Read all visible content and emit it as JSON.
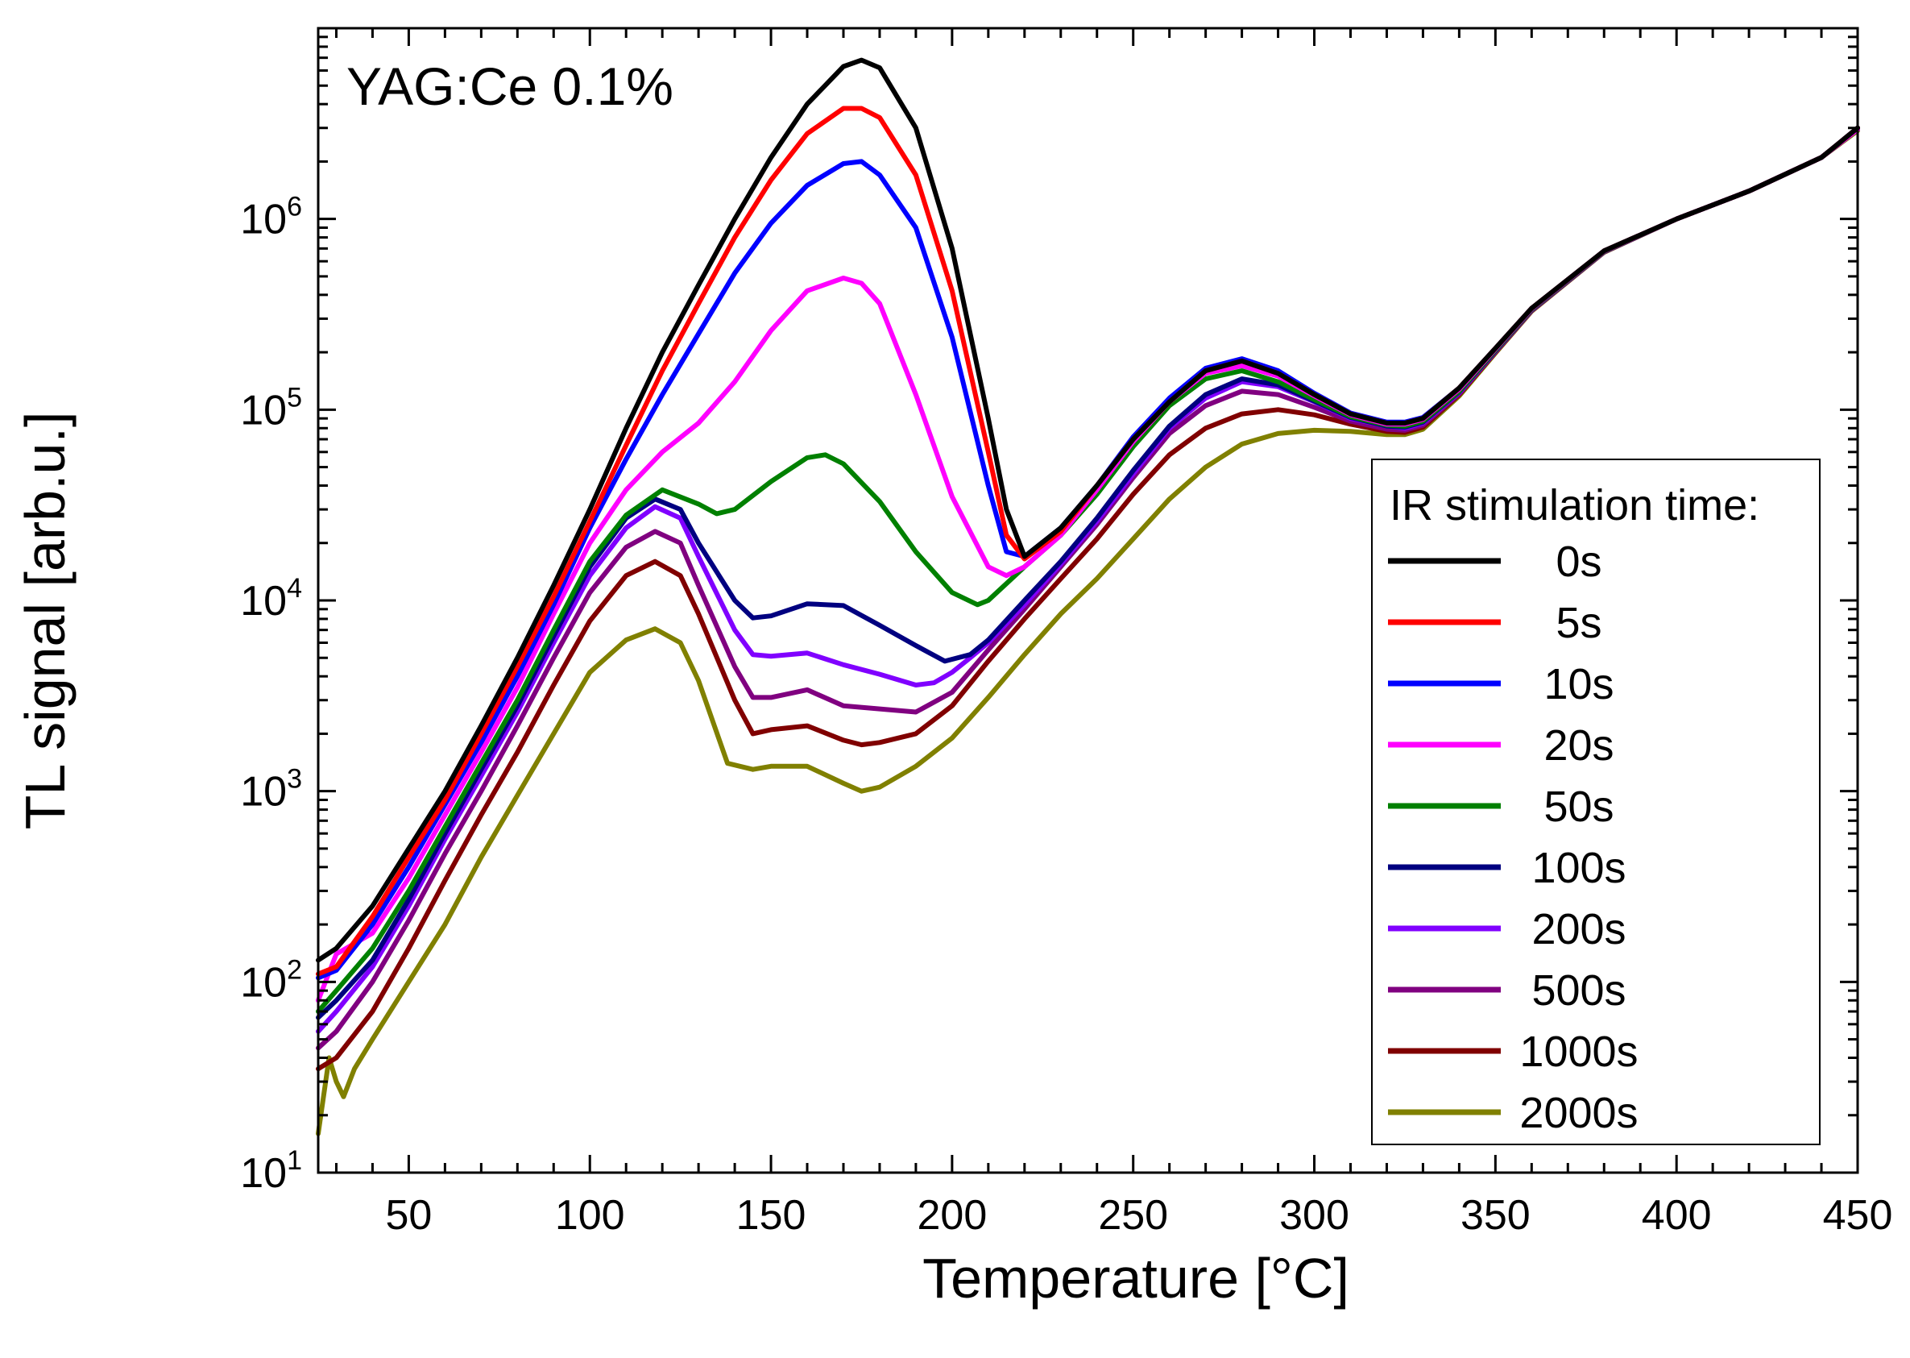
{
  "chart_data": {
    "type": "line",
    "annotation": "YAG:Ce 0.1%",
    "xlabel": "Temperature [°C]",
    "ylabel": "TL signal [arb.u.]",
    "xscale": "linear",
    "yscale": "log",
    "xlim": [
      25,
      450
    ],
    "ylim": [
      10,
      10000000
    ],
    "xticks": [
      50,
      100,
      150,
      200,
      250,
      300,
      350,
      400,
      450
    ],
    "yticks": [
      {
        "value": 10,
        "base": "10",
        "exp": "1"
      },
      {
        "value": 100,
        "base": "10",
        "exp": "2"
      },
      {
        "value": 1000,
        "base": "10",
        "exp": "3"
      },
      {
        "value": 10000,
        "base": "10",
        "exp": "4"
      },
      {
        "value": 100000,
        "base": "10",
        "exp": "5"
      },
      {
        "value": 1000000,
        "base": "10",
        "exp": "6"
      }
    ],
    "grid": false,
    "legend": {
      "title": "IR stimulation time:",
      "position": "right"
    },
    "series": [
      {
        "name": "0s",
        "color": "#000000",
        "x": [
          25,
          30,
          40,
          50,
          60,
          70,
          80,
          90,
          100,
          110,
          120,
          130,
          140,
          150,
          160,
          170,
          175,
          180,
          190,
          200,
          210,
          215,
          220,
          230,
          240,
          250,
          260,
          270,
          280,
          290,
          300,
          310,
          320,
          325,
          330,
          340,
          350,
          360,
          380,
          400,
          420,
          440,
          450
        ],
        "y": [
          130,
          150,
          250,
          500,
          1000,
          2200,
          5000,
          12000,
          30000,
          80000,
          200000,
          450000,
          1000000,
          2100000,
          4000000,
          6300000,
          6800000,
          6200000,
          3000000,
          700000,
          90000,
          30000,
          17000,
          24000,
          40000,
          70000,
          110000,
          160000,
          180000,
          155000,
          120000,
          95000,
          85000,
          85000,
          90000,
          130000,
          210000,
          340000,
          680000,
          1000000,
          1400000,
          2100000,
          3000000
        ]
      },
      {
        "name": "5s",
        "color": "#ff0000",
        "x": [
          25,
          30,
          40,
          50,
          60,
          70,
          80,
          90,
          100,
          110,
          120,
          130,
          140,
          150,
          160,
          170,
          175,
          180,
          190,
          200,
          210,
          215,
          220,
          230,
          240,
          250,
          260,
          270,
          280,
          290,
          300,
          310,
          320,
          325,
          330,
          340,
          350,
          360,
          380,
          400,
          420,
          440,
          450
        ],
        "y": [
          110,
          120,
          220,
          450,
          900,
          2000,
          4500,
          10500,
          26000,
          65000,
          160000,
          360000,
          800000,
          1600000,
          2800000,
          3800000,
          3800000,
          3400000,
          1700000,
          420000,
          60000,
          22000,
          16500,
          23000,
          40000,
          70000,
          110000,
          160000,
          180000,
          155000,
          120000,
          95000,
          85000,
          85000,
          90000,
          130000,
          210000,
          340000,
          680000,
          1000000,
          1400000,
          2100000,
          3000000
        ]
      },
      {
        "name": "10s",
        "color": "#0000ff",
        "x": [
          25,
          30,
          40,
          50,
          60,
          70,
          80,
          90,
          100,
          110,
          120,
          130,
          140,
          150,
          160,
          170,
          175,
          180,
          190,
          200,
          210,
          215,
          220,
          230,
          240,
          250,
          260,
          270,
          280,
          290,
          300,
          310,
          320,
          325,
          330,
          340,
          350,
          360,
          380,
          400,
          420,
          440,
          450
        ],
        "y": [
          105,
          115,
          200,
          400,
          850,
          1800,
          4000,
          9500,
          24000,
          55000,
          120000,
          250000,
          520000,
          950000,
          1500000,
          1950000,
          2000000,
          1700000,
          900000,
          240000,
          40000,
          18000,
          17000,
          24000,
          40000,
          72000,
          115000,
          165000,
          185000,
          160000,
          122000,
          96000,
          86000,
          86000,
          91000,
          130000,
          210000,
          340000,
          680000,
          1000000,
          1400000,
          2100000,
          3000000
        ]
      },
      {
        "name": "20s",
        "color": "#ff00ff",
        "x": [
          25,
          30,
          40,
          50,
          60,
          70,
          80,
          90,
          100,
          110,
          120,
          130,
          140,
          150,
          160,
          170,
          175,
          180,
          190,
          200,
          210,
          215,
          220,
          230,
          240,
          250,
          260,
          270,
          280,
          290,
          300,
          310,
          320,
          325,
          330,
          340,
          350,
          360,
          380,
          400,
          420,
          440,
          450
        ],
        "y": [
          80,
          140,
          180,
          350,
          750,
          1600,
          3500,
          8500,
          20000,
          38000,
          60000,
          85000,
          140000,
          260000,
          420000,
          490000,
          460000,
          360000,
          120000,
          35000,
          15000,
          13500,
          15000,
          22000,
          38000,
          68000,
          110000,
          155000,
          170000,
          150000,
          118000,
          94000,
          84000,
          84000,
          89000,
          128000,
          208000,
          338000,
          678000,
          1000000,
          1400000,
          2100000,
          2950000
        ]
      },
      {
        "name": "50s",
        "color": "#008000",
        "x": [
          25,
          30,
          40,
          50,
          60,
          70,
          80,
          90,
          100,
          110,
          120,
          130,
          135,
          140,
          150,
          160,
          165,
          170,
          180,
          190,
          200,
          207,
          210,
          220,
          230,
          240,
          250,
          260,
          270,
          280,
          290,
          300,
          310,
          320,
          325,
          330,
          340,
          350,
          360,
          380,
          400,
          420,
          440,
          450
        ],
        "y": [
          70,
          90,
          150,
          300,
          650,
          1400,
          3000,
          7000,
          16000,
          28000,
          38000,
          32000,
          28500,
          30000,
          42000,
          56000,
          58000,
          52000,
          33000,
          18000,
          11000,
          9500,
          10000,
          15000,
          22000,
          36000,
          64000,
          105000,
          145000,
          160000,
          140000,
          113000,
          92000,
          83000,
          82000,
          87000,
          125000,
          205000,
          335000,
          675000,
          1000000,
          1400000,
          2100000,
          2950000
        ]
      },
      {
        "name": "100s",
        "color": "#000080",
        "x": [
          25,
          30,
          40,
          50,
          60,
          70,
          80,
          90,
          100,
          110,
          118,
          125,
          130,
          140,
          145,
          150,
          160,
          170,
          180,
          190,
          198,
          205,
          210,
          220,
          230,
          240,
          250,
          260,
          270,
          280,
          290,
          300,
          310,
          320,
          325,
          330,
          340,
          350,
          360,
          380,
          400,
          420,
          440,
          450
        ],
        "y": [
          65,
          80,
          130,
          270,
          600,
          1300,
          2800,
          6500,
          15000,
          27000,
          34000,
          30000,
          20000,
          10000,
          8100,
          8300,
          9600,
          9400,
          7400,
          5800,
          4800,
          5200,
          6200,
          10000,
          16000,
          27000,
          48000,
          82000,
          120000,
          145000,
          135000,
          111000,
          91000,
          82000,
          81000,
          86000,
          124000,
          204000,
          334000,
          674000,
          1000000,
          1400000,
          2100000,
          2950000
        ]
      },
      {
        "name": "200s",
        "color": "#8000ff",
        "x": [
          25,
          30,
          40,
          50,
          60,
          70,
          80,
          90,
          100,
          110,
          118,
          125,
          130,
          140,
          145,
          150,
          160,
          170,
          180,
          190,
          195,
          200,
          205,
          210,
          220,
          230,
          240,
          250,
          260,
          270,
          280,
          290,
          300,
          310,
          320,
          325,
          330,
          340,
          350,
          360,
          380,
          400,
          420,
          440,
          450
        ],
        "y": [
          55,
          70,
          120,
          250,
          560,
          1200,
          2600,
          6000,
          13500,
          24000,
          31000,
          27000,
          17000,
          7000,
          5200,
          5100,
          5300,
          4600,
          4100,
          3600,
          3700,
          4200,
          5000,
          6000,
          9500,
          15500,
          26000,
          46000,
          80000,
          115000,
          140000,
          132000,
          110000,
          90000,
          82000,
          80000,
          85000,
          123000,
          203000,
          333000,
          673000,
          1000000,
          1400000,
          2100000,
          2950000
        ]
      },
      {
        "name": "500s",
        "color": "#800080",
        "x": [
          25,
          30,
          40,
          50,
          60,
          70,
          80,
          90,
          100,
          110,
          118,
          125,
          130,
          140,
          145,
          150,
          160,
          170,
          180,
          190,
          200,
          210,
          220,
          230,
          240,
          250,
          260,
          270,
          280,
          290,
          300,
          310,
          320,
          325,
          330,
          340,
          350,
          360,
          380,
          400,
          420,
          440,
          450
        ],
        "y": [
          45,
          55,
          100,
          210,
          470,
          1000,
          2200,
          5000,
          11000,
          19000,
          23000,
          20000,
          12000,
          4500,
          3100,
          3100,
          3400,
          2800,
          2700,
          2600,
          3300,
          5500,
          9000,
          15000,
          25000,
          44000,
          75000,
          105000,
          125000,
          120000,
          103000,
          87000,
          79000,
          78000,
          83000,
          121000,
          201000,
          331000,
          671000,
          1000000,
          1400000,
          2100000,
          2950000
        ]
      },
      {
        "name": "1000s",
        "color": "#800000",
        "x": [
          25,
          30,
          40,
          50,
          60,
          70,
          80,
          90,
          100,
          110,
          118,
          125,
          130,
          140,
          145,
          150,
          160,
          170,
          175,
          180,
          190,
          200,
          210,
          220,
          230,
          240,
          250,
          260,
          270,
          280,
          290,
          300,
          310,
          320,
          325,
          330,
          340,
          350,
          360,
          380,
          400,
          420,
          440,
          450
        ],
        "y": [
          35,
          40,
          70,
          150,
          340,
          750,
          1600,
          3600,
          7800,
          13500,
          16000,
          13500,
          8500,
          3000,
          2000,
          2100,
          2200,
          1850,
          1750,
          1800,
          2000,
          2800,
          4800,
          8000,
          13000,
          21000,
          36000,
          58000,
          80000,
          95000,
          100000,
          94000,
          84000,
          77000,
          76000,
          81000,
          120000,
          200000,
          330000,
          670000,
          1000000,
          1400000,
          2100000,
          2950000
        ]
      },
      {
        "name": "2000s",
        "color": "#808000",
        "x": [
          25,
          28,
          30,
          32,
          35,
          40,
          50,
          60,
          70,
          80,
          90,
          100,
          110,
          118,
          125,
          130,
          138,
          145,
          150,
          160,
          170,
          175,
          180,
          190,
          200,
          210,
          220,
          230,
          240,
          250,
          260,
          270,
          280,
          290,
          300,
          310,
          320,
          325,
          330,
          340,
          350,
          360,
          380,
          400,
          420,
          440,
          450
        ],
        "y": [
          16,
          40,
          30,
          25,
          35,
          50,
          100,
          200,
          450,
          950,
          2000,
          4200,
          6200,
          7100,
          6000,
          3800,
          1400,
          1300,
          1350,
          1350,
          1100,
          1000,
          1050,
          1350,
          1900,
          3100,
          5200,
          8500,
          13000,
          21000,
          34000,
          50000,
          66000,
          75000,
          78000,
          77000,
          74000,
          74000,
          79000,
          118000,
          198000,
          328000,
          668000,
          1000000,
          1400000,
          2100000,
          2900000
        ]
      }
    ]
  }
}
